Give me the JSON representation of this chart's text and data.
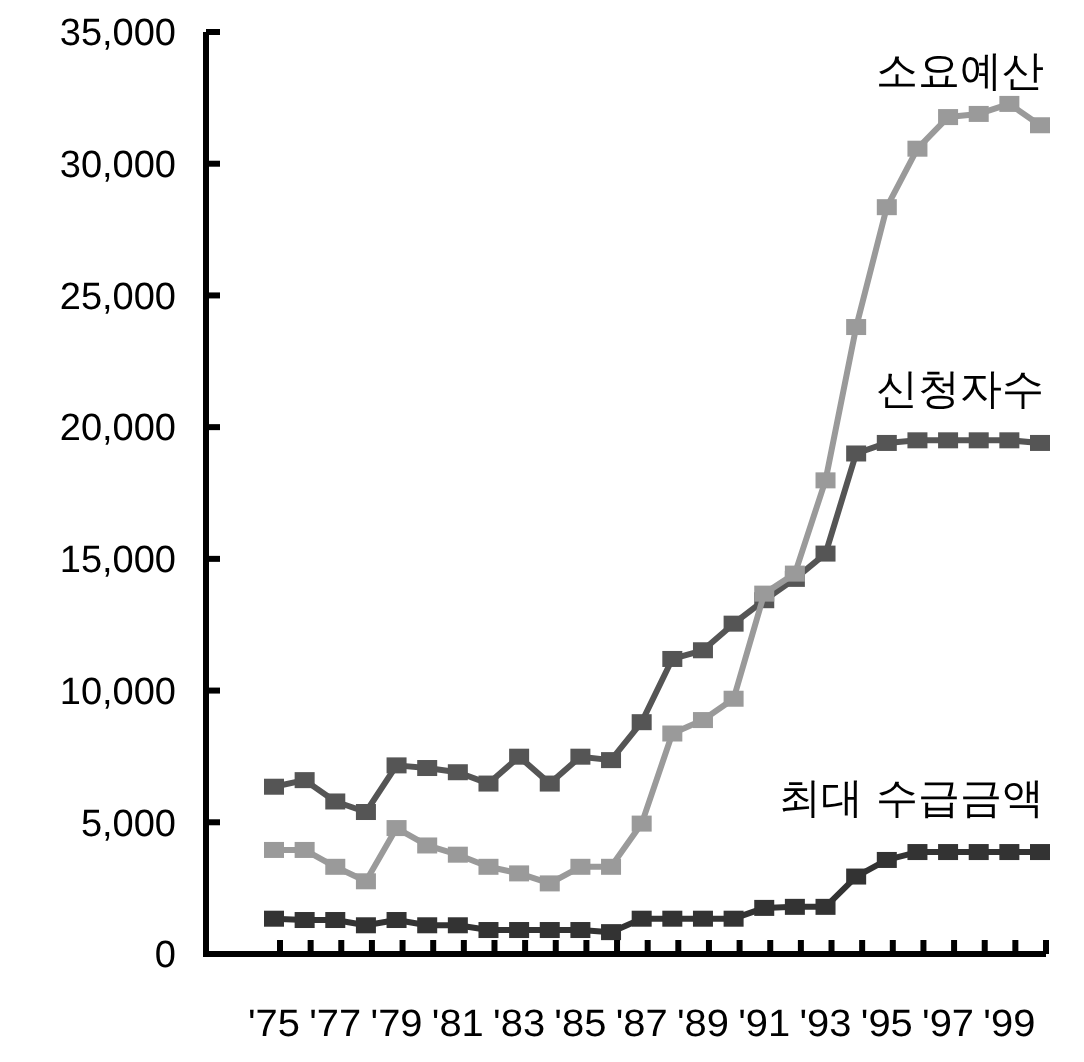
{
  "chart_data": {
    "type": "line",
    "categories": [
      "'75",
      null,
      "'77",
      null,
      "'79",
      null,
      "'81",
      null,
      "'83",
      null,
      "'85",
      null,
      "'87",
      null,
      "'89",
      null,
      "'91",
      null,
      "'93",
      null,
      "'95",
      null,
      "'97",
      null,
      "'99",
      null
    ],
    "ylim": [
      0,
      35000
    ],
    "yticks": [
      {
        "value": 0,
        "label": "0"
      },
      {
        "value": 5000,
        "label": "5,000"
      },
      {
        "value": 10000,
        "label": "10,000"
      },
      {
        "value": 15000,
        "label": "15,000"
      },
      {
        "value": 20000,
        "label": "20,000"
      },
      {
        "value": 25000,
        "label": "25,000"
      },
      {
        "value": 30000,
        "label": "30,000"
      },
      {
        "value": 35000,
        "label": "35,000"
      }
    ],
    "grid": false,
    "marker": "square",
    "line_style": "solid",
    "series": [
      {
        "name": "소요예산",
        "color": "#9a9a9a",
        "values": [
          3950,
          3950,
          3310,
          2760,
          4780,
          4120,
          3770,
          3310,
          3060,
          2680,
          3310,
          3310,
          4950,
          8370,
          8880,
          9690,
          13680,
          14440,
          17980,
          23800,
          28350,
          30570,
          31770,
          31890,
          32270,
          31460
        ]
      },
      {
        "name": "신청자수",
        "color": "#555555",
        "values": [
          6350,
          6600,
          5790,
          5390,
          7160,
          7060,
          6900,
          6470,
          7490,
          6470,
          7490,
          7360,
          8800,
          11200,
          11530,
          12540,
          13430,
          14240,
          15200,
          19000,
          19400,
          19500,
          19500,
          19500,
          19500,
          19400
        ]
      },
      {
        "name": "최대 수급금액",
        "color": "#333333",
        "values": [
          1340,
          1290,
          1290,
          1090,
          1290,
          1090,
          1090,
          910,
          910,
          910,
          910,
          830,
          1340,
          1340,
          1340,
          1340,
          1750,
          1790,
          1790,
          2940,
          3570,
          3870,
          3870,
          3870,
          3870,
          3870
        ]
      }
    ]
  }
}
